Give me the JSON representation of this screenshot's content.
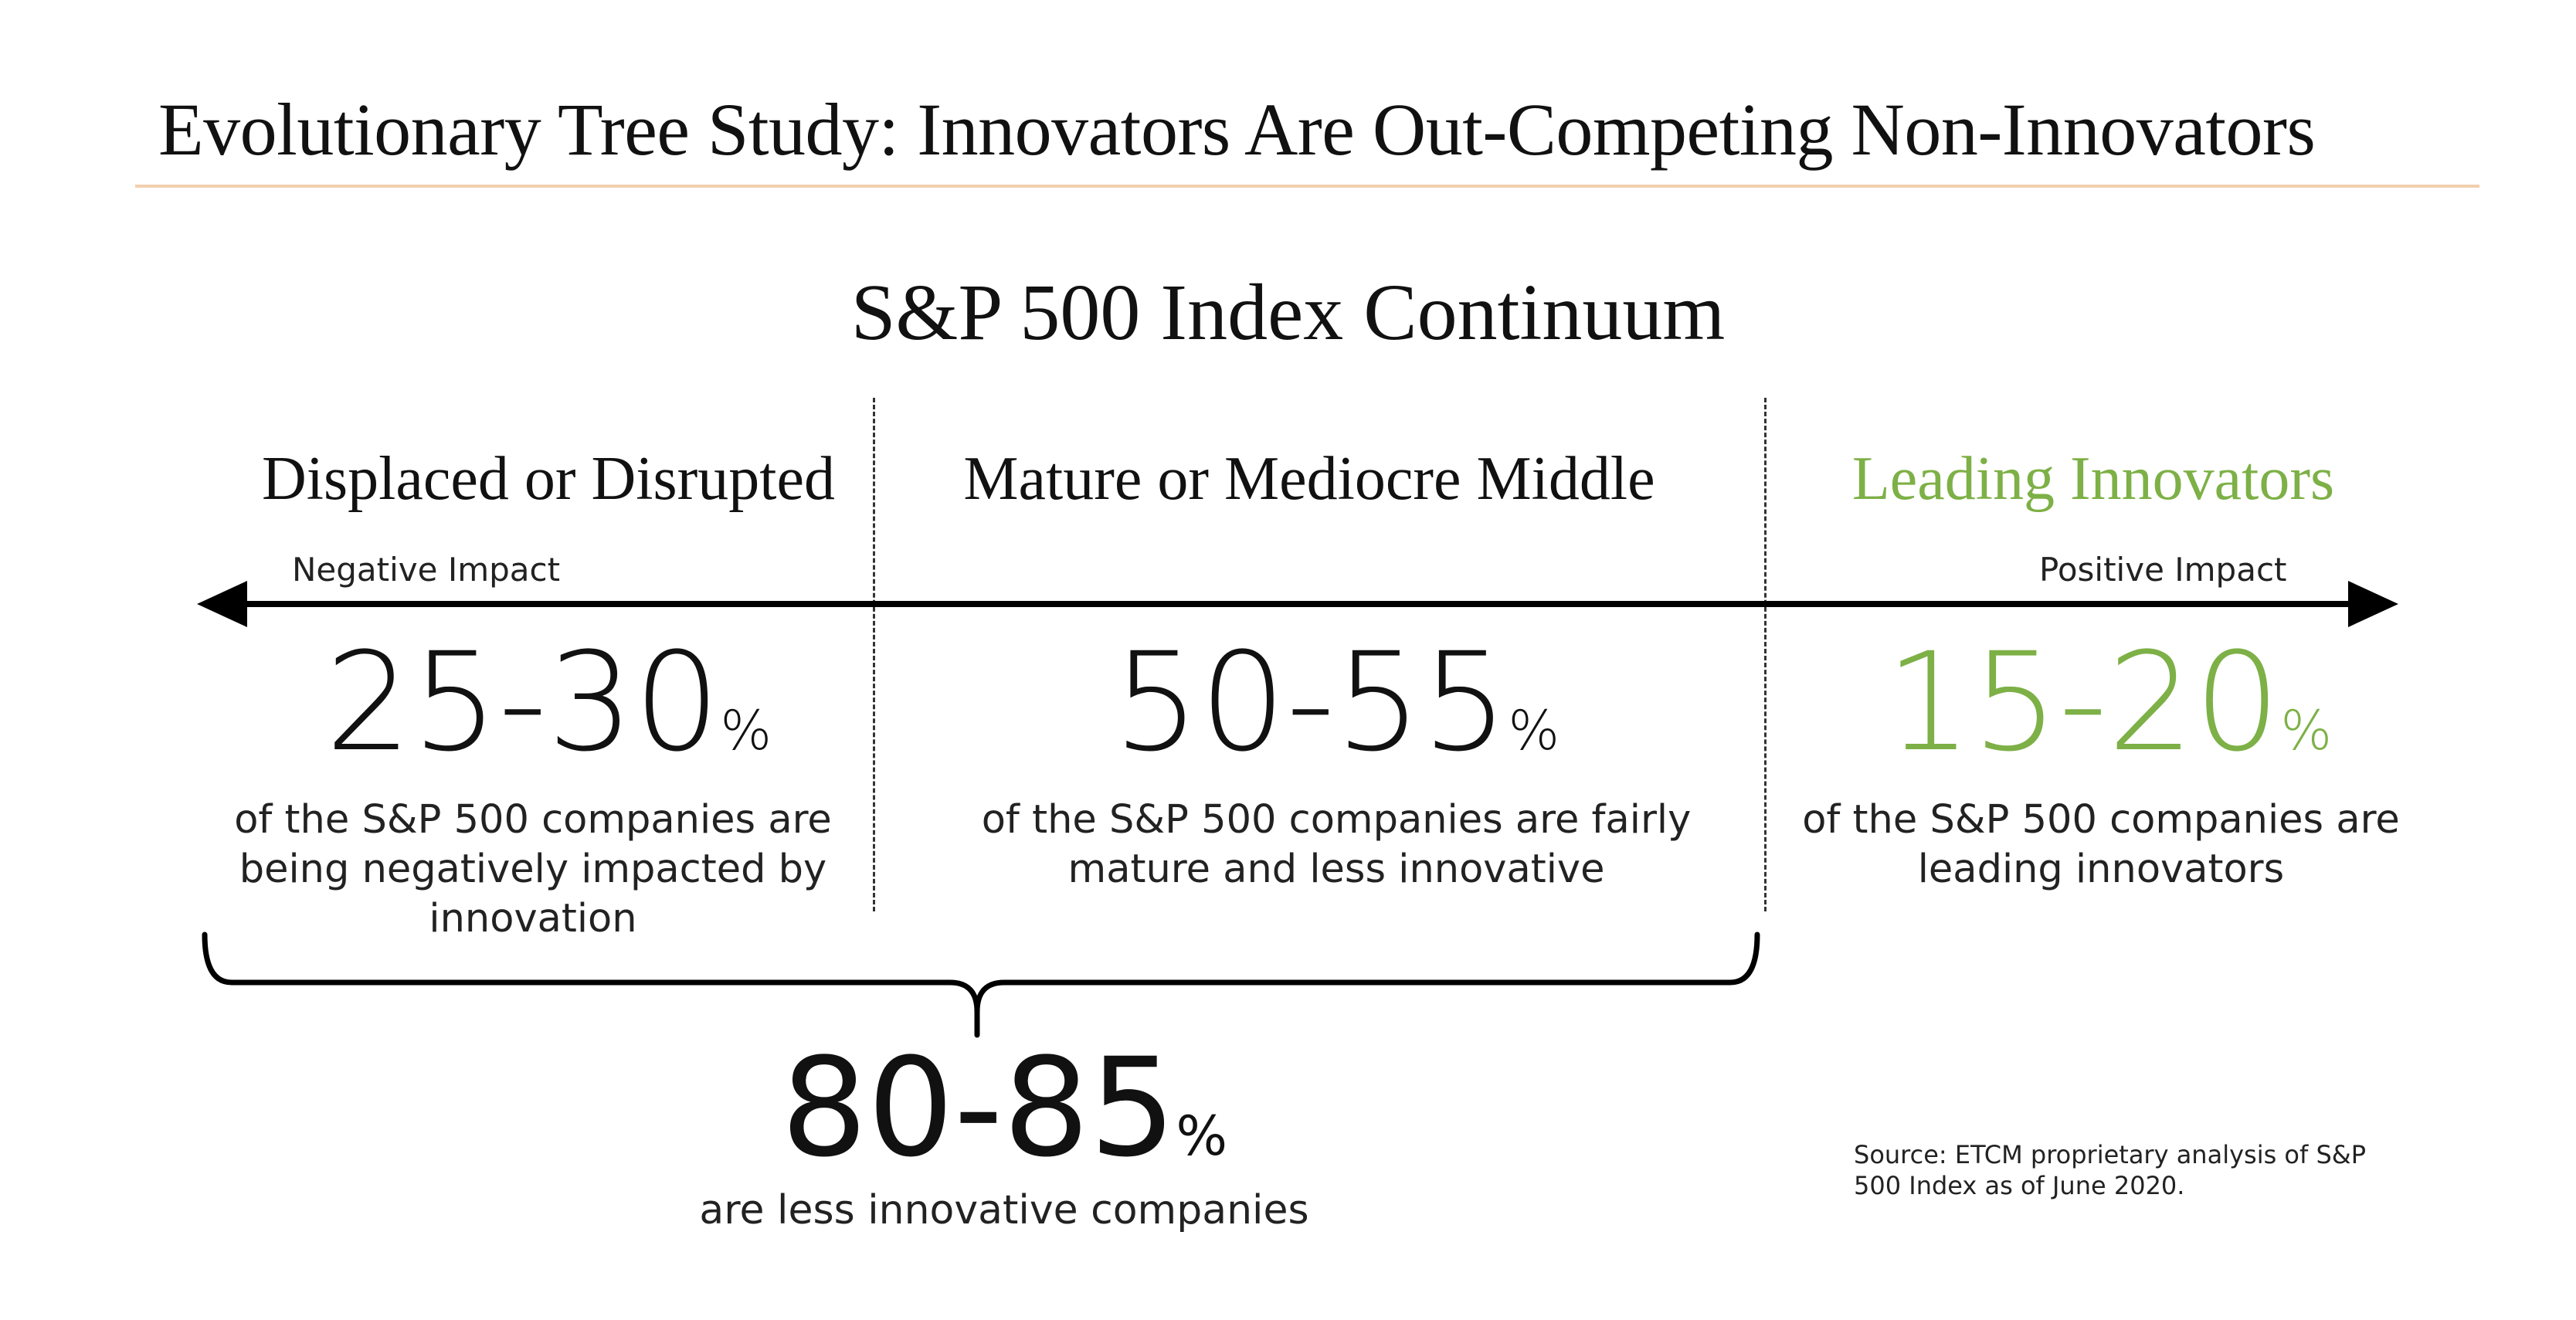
{
  "title": "Evolutionary Tree Study: Innovators Are Out-Competing Non-Innovators",
  "subtitle": "S&P 500 Index Continuum",
  "colors": {
    "text": "#111111",
    "accent_green": "#7db046",
    "title_rule": "#f2cfae"
  },
  "axis": {
    "left_label": "Negative Impact",
    "right_label": "Positive Impact"
  },
  "segments": [
    {
      "heading": "Displaced or Disrupted",
      "range": "25-30",
      "unit": "%",
      "description": "of the S&P 500 companies are being negatively impacted by innovation"
    },
    {
      "heading": "Mature or Mediocre Middle",
      "range": "50-55",
      "unit": "%",
      "description": "of the S&P 500 companies are fairly mature and less innovative"
    },
    {
      "heading": "Leading Innovators",
      "range": "15-20",
      "unit": "%",
      "description": "of the S&P 500 companies are leading innovators"
    }
  ],
  "combined": {
    "range": "80-85",
    "unit": "%",
    "description": "are less innovative companies"
  },
  "source": "Source: ETCM proprietary analysis of S&P 500 Index as of June 2020."
}
